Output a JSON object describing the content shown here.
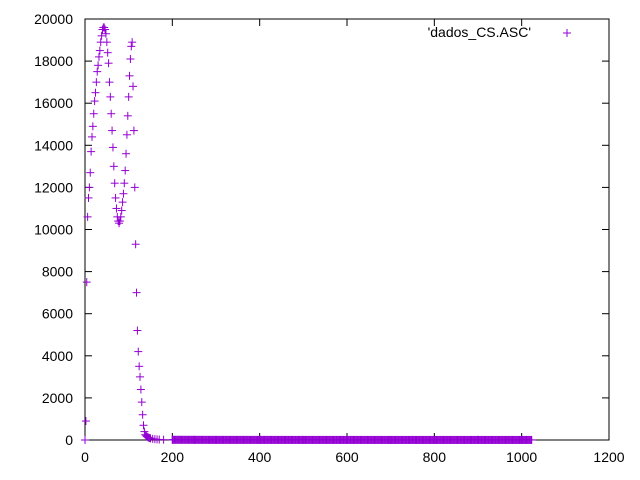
{
  "chart_data": {
    "type": "scatter",
    "marker": "plus",
    "xlim": [
      0,
      1200
    ],
    "ylim": [
      0,
      20000
    ],
    "x_ticks": [
      0,
      200,
      400,
      600,
      800,
      1000,
      1200
    ],
    "y_ticks": [
      0,
      2000,
      4000,
      6000,
      8000,
      10000,
      12000,
      14000,
      16000,
      18000,
      20000
    ],
    "grid": false,
    "legend_position": "top-right",
    "series": [
      {
        "name": "'dados_CS.ASC'",
        "color": "#9400D3",
        "points": [
          [
            0,
            0
          ],
          [
            2,
            900
          ],
          [
            4,
            7500
          ],
          [
            6,
            10600
          ],
          [
            8,
            11500
          ],
          [
            10,
            12000
          ],
          [
            12,
            12700
          ],
          [
            14,
            13700
          ],
          [
            16,
            14400
          ],
          [
            18,
            14900
          ],
          [
            20,
            15500
          ],
          [
            22,
            16100
          ],
          [
            24,
            16500
          ],
          [
            26,
            17000
          ],
          [
            28,
            17500
          ],
          [
            30,
            17800
          ],
          [
            32,
            18200
          ],
          [
            34,
            18500
          ],
          [
            36,
            18900
          ],
          [
            38,
            19200
          ],
          [
            40,
            19500
          ],
          [
            42,
            19600
          ],
          [
            44,
            19600
          ],
          [
            46,
            19500
          ],
          [
            48,
            19300
          ],
          [
            50,
            18900
          ],
          [
            52,
            18400
          ],
          [
            54,
            17900
          ],
          [
            56,
            17000
          ],
          [
            58,
            16300
          ],
          [
            60,
            15500
          ],
          [
            62,
            14700
          ],
          [
            64,
            13900
          ],
          [
            66,
            13000
          ],
          [
            68,
            12200
          ],
          [
            70,
            11500
          ],
          [
            72,
            11000
          ],
          [
            74,
            10600
          ],
          [
            76,
            10400
          ],
          [
            78,
            10300
          ],
          [
            80,
            10400
          ],
          [
            82,
            10600
          ],
          [
            84,
            10900
          ],
          [
            86,
            11300
          ],
          [
            88,
            11700
          ],
          [
            90,
            12200
          ],
          [
            92,
            12800
          ],
          [
            94,
            13600
          ],
          [
            96,
            14500
          ],
          [
            98,
            15400
          ],
          [
            100,
            16300
          ],
          [
            102,
            17300
          ],
          [
            104,
            18100
          ],
          [
            106,
            18700
          ],
          [
            108,
            18900
          ],
          [
            110,
            16800
          ],
          [
            112,
            14700
          ],
          [
            114,
            12000
          ],
          [
            116,
            9300
          ],
          [
            118,
            7000
          ],
          [
            120,
            5200
          ],
          [
            122,
            4200
          ],
          [
            124,
            3500
          ],
          [
            126,
            3000
          ],
          [
            128,
            2400
          ],
          [
            130,
            1800
          ],
          [
            132,
            1200
          ],
          [
            134,
            700
          ],
          [
            136,
            400
          ],
          [
            138,
            250
          ],
          [
            140,
            200
          ],
          [
            142,
            160
          ],
          [
            144,
            130
          ],
          [
            146,
            110
          ],
          [
            148,
            90
          ],
          [
            150,
            75
          ],
          [
            155,
            55
          ],
          [
            160,
            40
          ],
          [
            165,
            30
          ],
          [
            170,
            22
          ],
          [
            180,
            15
          ],
          [
            200,
            10
          ],
          [
            250,
            8
          ],
          [
            300,
            6
          ],
          [
            400,
            5
          ],
          [
            500,
            4
          ],
          [
            600,
            4
          ],
          [
            700,
            3
          ],
          [
            800,
            3
          ],
          [
            900,
            3
          ],
          [
            1000,
            3
          ],
          [
            1023,
            3
          ]
        ]
      }
    ]
  }
}
